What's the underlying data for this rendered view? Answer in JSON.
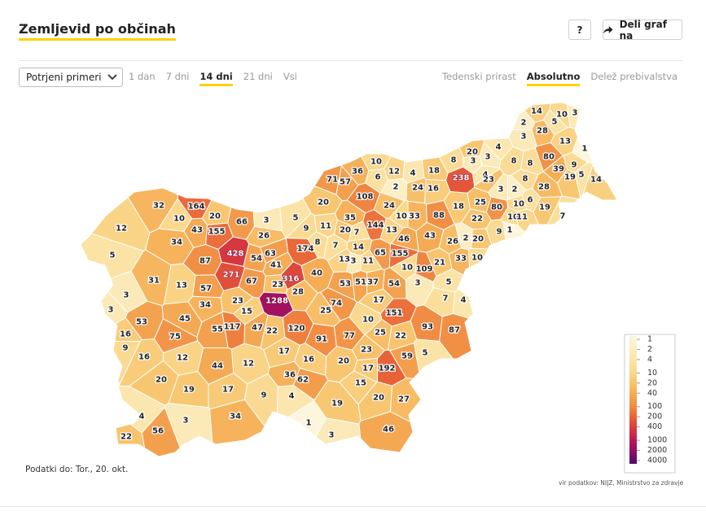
{
  "header": {
    "title": "Zemljevid po občinah",
    "help_button": "?",
    "share_button": "Deli graf na"
  },
  "controls": {
    "measure": "Potrjeni primeri",
    "periods": [
      "1 dan",
      "7 dni",
      "14 dni",
      "21 dni",
      "Vsi"
    ],
    "active_period": 2,
    "modes": [
      "Tedenski prirast",
      "Absolutno",
      "Delež prebivalstva"
    ],
    "active_mode": 1
  },
  "map": {
    "scale": "log",
    "values": [
      14,
      10,
      3,
      2,
      5,
      28,
      3,
      13,
      4,
      20,
      3,
      80,
      1,
      8,
      3,
      8,
      8,
      9,
      4,
      39,
      5,
      19,
      14,
      8,
      238,
      23,
      3,
      2,
      28,
      71,
      57,
      36,
      10,
      12,
      4,
      18,
      6,
      2,
      24,
      16,
      108,
      20,
      24,
      18,
      25,
      80,
      6,
      10,
      19,
      7,
      10,
      33,
      88,
      22,
      10,
      11,
      35,
      144,
      13,
      9,
      11,
      20,
      7,
      5,
      3,
      66,
      20,
      164,
      32,
      10,
      43,
      155,
      12,
      34,
      5,
      26,
      8,
      174,
      7,
      14,
      46,
      43,
      26,
      2,
      20,
      9,
      1,
      428,
      54,
      63,
      87,
      65,
      155,
      21,
      33,
      10,
      13,
      3,
      11,
      41,
      271,
      10,
      109,
      13,
      31,
      57,
      67,
      23,
      316,
      28,
      40,
      53,
      51,
      37,
      54,
      3,
      5,
      3,
      1288,
      3,
      34,
      23,
      15,
      74,
      17,
      25,
      7,
      4,
      151,
      45,
      53,
      10,
      47,
      117,
      55,
      22,
      120,
      93,
      87,
      16,
      75,
      91,
      77,
      25,
      22,
      9,
      16,
      12,
      17,
      16,
      23,
      59,
      5,
      44,
      12,
      20,
      17,
      192,
      36,
      62,
      20,
      19,
      17,
      15,
      9,
      4,
      20,
      27,
      19,
      4,
      3,
      34,
      1,
      56,
      46,
      22,
      3
    ],
    "legend_ticks": [
      1,
      2,
      4,
      10,
      20,
      40,
      100,
      200,
      400,
      1000,
      2000,
      4000
    ],
    "legend_colors": [
      "#fdf6dc",
      "#fcefc6",
      "#fbe6ad",
      "#fad98e",
      "#f8c670",
      "#f5ad55",
      "#f08a42",
      "#e85f36",
      "#d93a3e",
      "#b3145a",
      "#8a0c68",
      "#4d0a6e"
    ]
  },
  "footer": {
    "data_date": "Podatki do: Tor., 20. okt.",
    "source": "vir podatkov: NIJZ, Ministrstvo za zdravje"
  }
}
